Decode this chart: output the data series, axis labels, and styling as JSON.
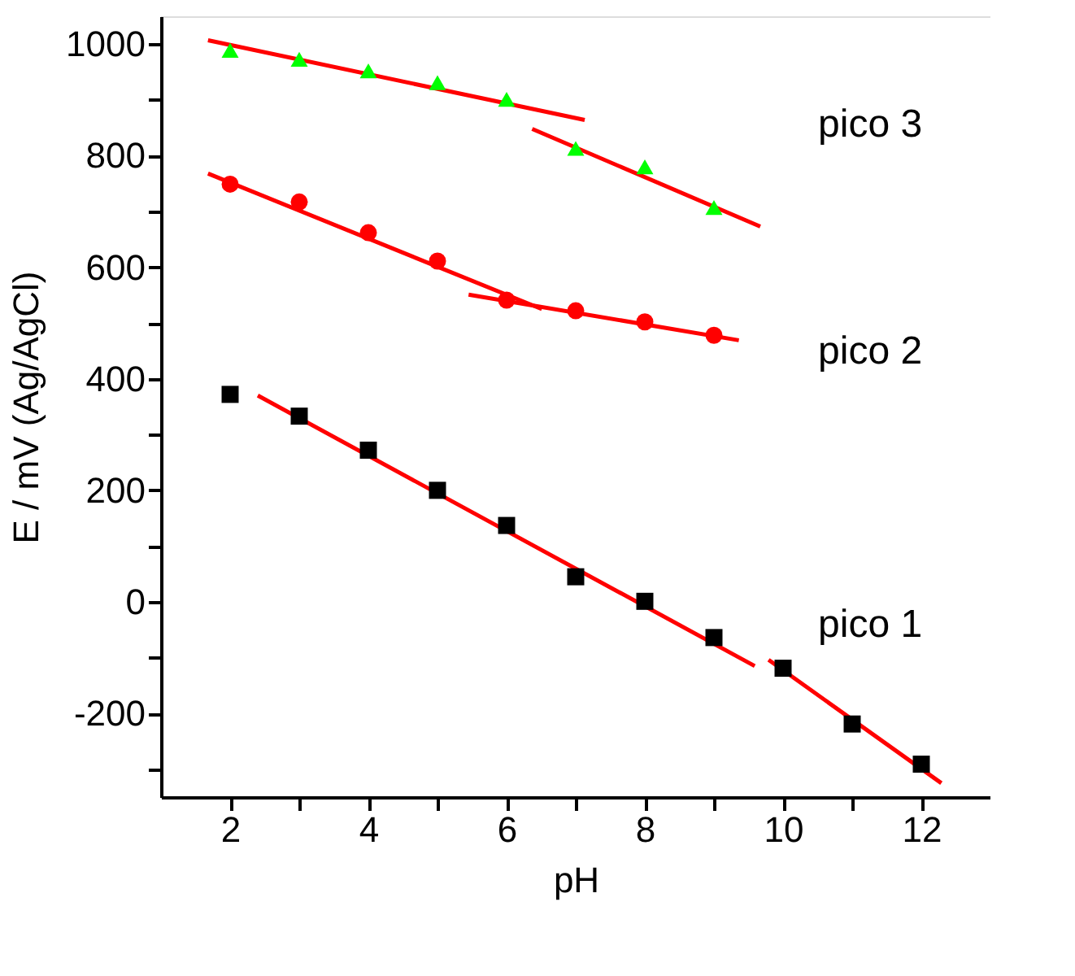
{
  "chart_data": {
    "type": "scatter",
    "xlabel": "pH",
    "ylabel": "E / mV (Ag/AgCl)",
    "xlim": [
      1,
      13
    ],
    "ylim": [
      -350,
      1050
    ],
    "xticks": [
      2,
      {
        "value": 3,
        "label": null
      },
      4,
      {
        "value": 5,
        "label": null
      },
      6,
      {
        "value": 7,
        "label": null
      },
      8,
      {
        "value": 9,
        "label": null
      },
      10,
      {
        "value": 11,
        "label": null
      },
      12
    ],
    "yticks": [
      {
        "value": -300,
        "label": null
      },
      -200,
      {
        "value": -100,
        "label": null
      },
      0,
      {
        "value": 100,
        "label": null
      },
      200,
      {
        "value": 300,
        "label": null
      },
      400,
      {
        "value": 500,
        "label": null
      },
      600,
      {
        "value": 700,
        "label": null
      },
      800,
      {
        "value": 900,
        "label": null
      },
      1000
    ],
    "grid": false,
    "series": [
      {
        "marker": "square",
        "color": "#000000",
        "x": [
          2,
          3,
          4,
          5,
          6,
          7,
          8,
          9,
          10,
          11,
          12
        ],
        "values": [
          372,
          333,
          272,
          200,
          137,
          45,
          1,
          -64,
          -119,
          -219,
          -291
        ]
      },
      {
        "marker": "circle",
        "color": "#ff0000",
        "x": [
          2,
          3,
          4,
          5,
          6,
          7,
          8,
          9
        ],
        "values": [
          749,
          717,
          662,
          611,
          541,
          522,
          502,
          478
        ]
      },
      {
        "marker": "triangle",
        "color": "#00ff00",
        "x": [
          2,
          3,
          4,
          5,
          6,
          7,
          8,
          9
        ],
        "values": [
          989,
          973,
          952,
          931,
          901,
          813,
          780,
          707
        ]
      },
      {
        "type": "line",
        "marker": "none",
        "line_style": "solid",
        "color": "#ff0000",
        "x": [
          2.4,
          9.59
        ],
        "values": [
          370,
          -115
        ]
      },
      {
        "type": "line",
        "marker": "none",
        "line_style": "solid",
        "color": "#ff0000",
        "x": [
          9.79,
          12.29
        ],
        "values": [
          -104,
          -325
        ]
      },
      {
        "type": "line",
        "marker": "none",
        "line_style": "solid",
        "color": "#ff0000",
        "x": [
          1.68,
          6.51
        ],
        "values": [
          768,
          525
        ]
      },
      {
        "type": "line",
        "marker": "none",
        "line_style": "solid",
        "color": "#ff0000",
        "x": [
          5.45,
          9.36
        ],
        "values": [
          551,
          469
        ]
      },
      {
        "type": "line",
        "marker": "none",
        "line_style": "solid",
        "color": "#ff0000",
        "x": [
          1.68,
          7.13
        ],
        "values": [
          1007,
          864
        ]
      },
      {
        "type": "line",
        "marker": "none",
        "line_style": "solid",
        "color": "#ff0000",
        "x": [
          6.37,
          9.67
        ],
        "values": [
          848,
          673
        ]
      }
    ],
    "annotations": [
      "pico 3",
      "pico 2",
      "pico 1"
    ]
  }
}
